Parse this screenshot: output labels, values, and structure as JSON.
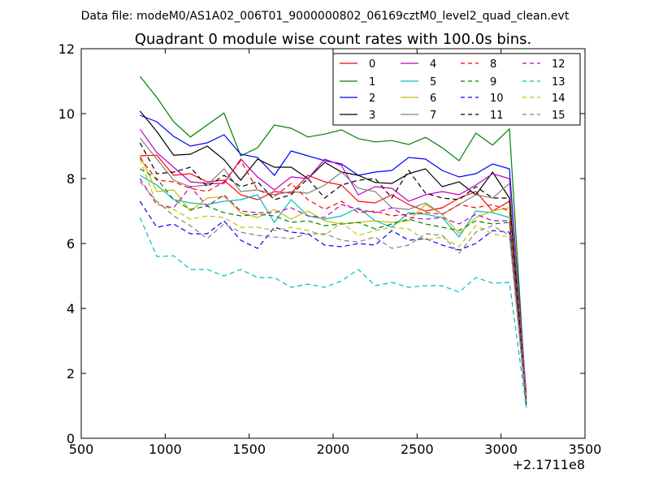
{
  "chart_data": {
    "type": "line",
    "suptitle": "Data file: modeM0/AS1A02_006T01_9000000802_06169cztM0_level2_quad_clean.evt",
    "title": "Quadrant 0 module wise count rates with 100.0s bins.",
    "xlabel": "",
    "ylabel": "",
    "offset_label": "+2.1711e8",
    "xlim": [
      500,
      3500
    ],
    "ylim": [
      0,
      12
    ],
    "xticks": [
      500,
      1000,
      1500,
      2000,
      2500,
      3000,
      3500
    ],
    "yticks": [
      0,
      2,
      4,
      6,
      8,
      10,
      12
    ],
    "legend_position": "upper-right",
    "x": [
      850,
      950,
      1050,
      1150,
      1250,
      1350,
      1450,
      1550,
      1650,
      1750,
      1850,
      1950,
      2050,
      2150,
      2250,
      2350,
      2450,
      2550,
      2650,
      2750,
      2850,
      2950,
      3050,
      3150
    ],
    "series": [
      {
        "name": "0",
        "color": "#ff0000",
        "dash": "solid",
        "values": [
          8.7,
          8.72,
          8.1,
          8.15,
          7.9,
          7.95,
          7.5,
          7.35,
          7.6,
          7.55,
          8.1,
          7.9,
          7.8,
          7.3,
          7.25,
          7.5,
          7.2,
          7.0,
          7.1,
          7.4,
          7.6,
          7.0,
          7.3,
          1.4
        ]
      },
      {
        "name": "1",
        "color": "#008000",
        "dash": "solid",
        "values": [
          11.15,
          10.5,
          9.75,
          9.28,
          9.65,
          10.02,
          8.7,
          8.95,
          9.65,
          9.55,
          9.28,
          9.37,
          9.5,
          9.23,
          9.13,
          9.17,
          9.05,
          9.27,
          8.95,
          8.55,
          9.4,
          9.03,
          9.53,
          1.1
        ]
      },
      {
        "name": "2",
        "color": "#0000ff",
        "dash": "solid",
        "values": [
          9.95,
          9.75,
          9.3,
          9.0,
          9.1,
          9.35,
          8.75,
          8.65,
          8.1,
          8.85,
          8.7,
          8.55,
          8.45,
          8.1,
          8.2,
          8.25,
          8.65,
          8.6,
          8.25,
          8.05,
          8.15,
          8.45,
          8.3,
          1.3
        ]
      },
      {
        "name": "3",
        "color": "#000000",
        "dash": "solid",
        "values": [
          10.08,
          9.45,
          8.72,
          8.75,
          9.0,
          8.58,
          7.95,
          8.6,
          8.35,
          8.35,
          8.0,
          8.5,
          8.2,
          8.1,
          7.88,
          7.85,
          8.15,
          8.3,
          7.75,
          7.9,
          7.5,
          8.2,
          7.4,
          1.2
        ]
      },
      {
        "name": "4",
        "color": "#bf00bf",
        "dash": "solid",
        "values": [
          9.52,
          8.8,
          8.35,
          7.9,
          7.85,
          7.85,
          8.6,
          8.05,
          7.65,
          8.05,
          8.0,
          8.6,
          8.4,
          7.5,
          7.75,
          7.7,
          7.3,
          7.5,
          7.6,
          7.5,
          7.8,
          8.15,
          8.0,
          1.4
        ]
      },
      {
        "name": "5",
        "color": "#00bfbf",
        "dash": "solid",
        "values": [
          8.1,
          7.8,
          7.35,
          7.25,
          7.2,
          7.3,
          7.35,
          7.5,
          6.65,
          7.35,
          6.85,
          6.75,
          6.85,
          7.1,
          6.7,
          6.5,
          6.95,
          6.9,
          6.8,
          6.2,
          7.0,
          6.95,
          6.8,
          0.95
        ]
      },
      {
        "name": "6",
        "color": "#bfbf00",
        "dash": "solid",
        "values": [
          8.7,
          7.6,
          7.65,
          7.0,
          7.4,
          7.45,
          6.95,
          6.8,
          7.05,
          6.75,
          7.0,
          6.7,
          6.6,
          6.65,
          6.7,
          6.65,
          6.7,
          7.2,
          6.9,
          6.3,
          6.8,
          7.0,
          7.1,
          1.05
        ]
      },
      {
        "name": "7",
        "color": "#808080",
        "dash": "solid",
        "values": [
          9.25,
          8.6,
          7.95,
          7.75,
          7.8,
          8.3,
          7.6,
          7.65,
          7.5,
          7.6,
          7.55,
          7.8,
          8.2,
          7.7,
          7.6,
          7.1,
          7.05,
          7.25,
          6.9,
          7.2,
          7.5,
          7.4,
          7.85,
          1.25
        ]
      },
      {
        "name": "8",
        "color": "#ff0000",
        "dash": "dashed",
        "values": [
          8.65,
          7.95,
          7.9,
          7.7,
          7.6,
          7.9,
          8.55,
          7.65,
          7.45,
          7.85,
          7.35,
          7.05,
          7.3,
          6.95,
          7.0,
          6.85,
          6.9,
          6.95,
          6.9,
          7.2,
          7.1,
          7.2,
          7.0,
          1.2
        ]
      },
      {
        "name": "9",
        "color": "#008000",
        "dash": "dashed",
        "values": [
          8.3,
          8.0,
          7.35,
          7.05,
          7.15,
          6.95,
          6.85,
          6.9,
          6.85,
          6.65,
          6.7,
          6.55,
          6.6,
          6.65,
          6.45,
          6.6,
          6.75,
          6.6,
          6.5,
          6.4,
          6.7,
          6.6,
          6.65,
          1.05
        ]
      },
      {
        "name": "10",
        "color": "#0000ff",
        "dash": "dashed",
        "values": [
          7.3,
          6.5,
          6.6,
          6.3,
          6.3,
          6.7,
          6.1,
          5.85,
          6.5,
          6.35,
          6.3,
          5.95,
          5.9,
          6.0,
          5.95,
          6.4,
          6.1,
          6.15,
          5.95,
          5.8,
          6.0,
          6.4,
          6.35,
          1.0
        ]
      },
      {
        "name": "11",
        "color": "#000000",
        "dash": "dashed",
        "values": [
          9.1,
          8.15,
          8.2,
          8.35,
          7.75,
          8.1,
          7.75,
          7.9,
          7.35,
          7.5,
          8.0,
          7.4,
          7.8,
          7.95,
          8.0,
          7.4,
          8.25,
          7.55,
          7.4,
          7.35,
          7.75,
          7.4,
          7.4,
          1.1
        ]
      },
      {
        "name": "12",
        "color": "#bf00bf",
        "dash": "dashed",
        "values": [
          8.0,
          7.2,
          7.1,
          7.75,
          7.15,
          7.5,
          7.0,
          6.95,
          6.95,
          7.1,
          6.85,
          6.8,
          7.2,
          7.05,
          6.95,
          7.1,
          6.8,
          6.75,
          6.8,
          6.6,
          6.9,
          6.7,
          6.7,
          1.2
        ]
      },
      {
        "name": "13",
        "color": "#00bfbf",
        "dash": "dashed",
        "values": [
          6.8,
          5.6,
          5.62,
          5.2,
          5.2,
          5.0,
          5.2,
          4.95,
          4.95,
          4.65,
          4.75,
          4.65,
          4.85,
          5.2,
          4.7,
          4.8,
          4.65,
          4.7,
          4.7,
          4.5,
          4.95,
          4.78,
          4.8,
          0.95
        ]
      },
      {
        "name": "14",
        "color": "#bfbf00",
        "dash": "dashed",
        "values": [
          8.6,
          7.2,
          7.05,
          6.75,
          6.85,
          6.8,
          6.5,
          6.5,
          6.4,
          6.5,
          6.4,
          6.25,
          6.65,
          6.25,
          6.4,
          6.5,
          6.45,
          6.1,
          6.2,
          5.9,
          6.55,
          6.3,
          6.2,
          1.15
        ]
      },
      {
        "name": "15",
        "color": "#808080",
        "dash": "dashed",
        "values": [
          7.9,
          7.3,
          6.85,
          6.55,
          6.15,
          6.6,
          6.35,
          6.25,
          6.2,
          6.15,
          6.3,
          6.3,
          6.1,
          6.05,
          6.2,
          5.85,
          5.95,
          6.3,
          6.25,
          5.7,
          6.35,
          6.55,
          6.25,
          1.0
        ]
      }
    ]
  }
}
